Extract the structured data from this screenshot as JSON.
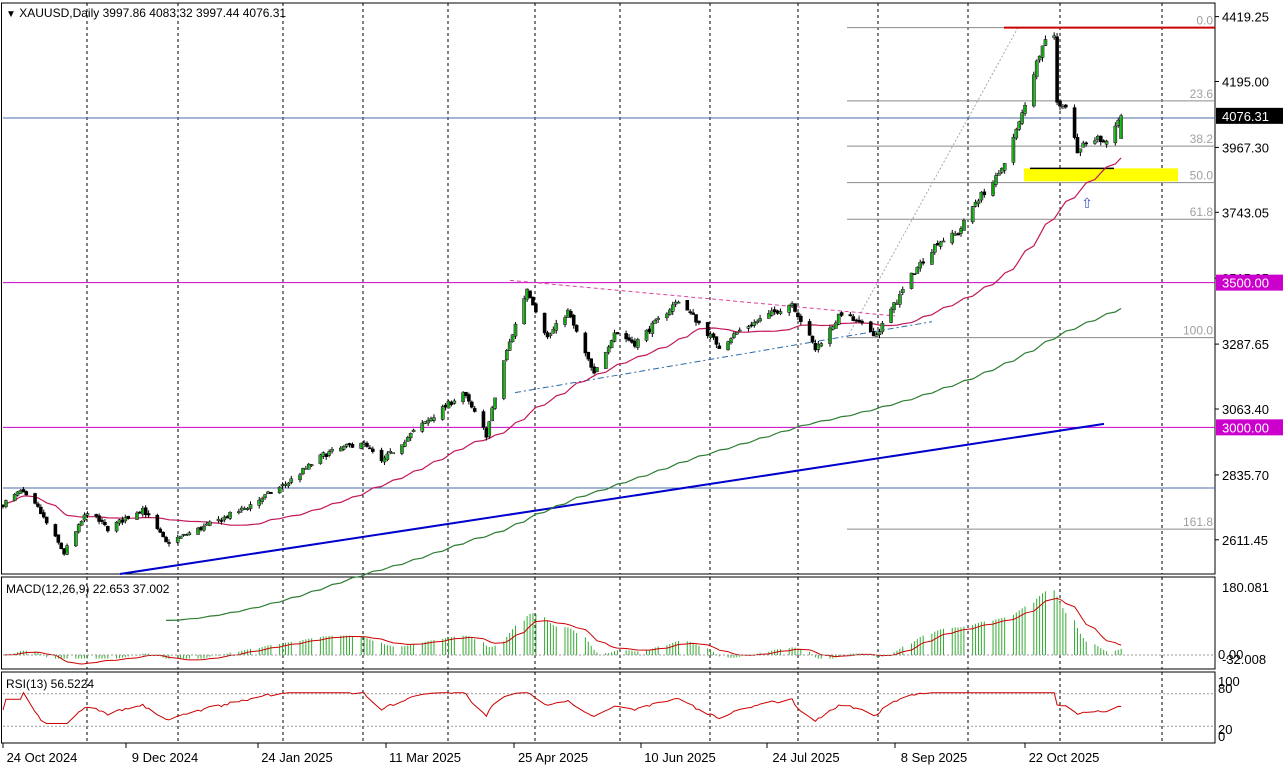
{
  "header": {
    "symbol_info": "XAUUSD,Daily  3997.86 4083.32 3997.44 4076.31"
  },
  "chart_data": {
    "type": "candlestick",
    "symbol": "XAUUSD",
    "timeframe": "Daily",
    "ohlc": {
      "open": 3997.86,
      "high": 4083.32,
      "low": 3997.44,
      "close": 4076.31
    },
    "x_labels": [
      "24 Oct 2024",
      "9 Dec 2024",
      "24 Jan 2025",
      "11 Mar 2025",
      "25 Apr 2025",
      "10 Jun 2025",
      "24 Jul 2025",
      "8 Sep 2025",
      "22 Oct 2025"
    ],
    "price_axis": {
      "ticks": [
        "4419.25",
        "4195.00",
        "3967.30",
        "3743.05",
        "3515.35",
        "3287.65",
        "3063.40",
        "2835.70",
        "2611.45"
      ],
      "ylim": [
        2500,
        4470
      ]
    },
    "last_price": {
      "value": 4076.31,
      "label": "4076.31"
    },
    "horizontal_levels": [
      {
        "value": 3500.0,
        "label": "3500.00",
        "color": "#cc00cc"
      },
      {
        "value": 3000.0,
        "label": "3000.00",
        "color": "#cc00cc"
      }
    ],
    "fibonacci": {
      "high": 4381,
      "low": 3310,
      "levels": [
        {
          "ratio": 0.0,
          "label": "0.0"
        },
        {
          "ratio": 0.236,
          "label": "23.6"
        },
        {
          "ratio": 0.382,
          "label": "38.2"
        },
        {
          "ratio": 0.5,
          "label": "50.0"
        },
        {
          "ratio": 0.618,
          "label": "61.8"
        },
        {
          "ratio": 1.0,
          "label": "100.0"
        },
        {
          "ratio": 1.618,
          "label": "161.8"
        }
      ]
    },
    "support_zone": {
      "from": 3850,
      "to": 3895,
      "color": "#ffff00"
    },
    "resistance_line": {
      "value": 4381,
      "color": "#cc0000"
    },
    "moving_averages": [
      {
        "name": "MA fast",
        "color": "#c2185b"
      },
      {
        "name": "MA slow",
        "color": "#2e7d32"
      }
    ],
    "trendlines": [
      {
        "name": "long-term support",
        "color": "#0000cc"
      }
    ],
    "macd": {
      "label": "MACD(12,26,9) 22.653 37.002",
      "params": [
        12,
        26,
        9
      ],
      "macd": 22.653,
      "signal": 37.002,
      "axis_ticks": [
        "180.081",
        "0.00",
        "-32.008"
      ]
    },
    "rsi": {
      "label": "RSI(13) 56.5224",
      "period": 13,
      "value": 56.5224,
      "axis_ticks": [
        "100",
        "80",
        "20",
        "0"
      ]
    },
    "colors": {
      "bull": "#00aa00",
      "bear": "#000000",
      "grid": "#000000",
      "axis_bg": "#ffffff"
    }
  }
}
